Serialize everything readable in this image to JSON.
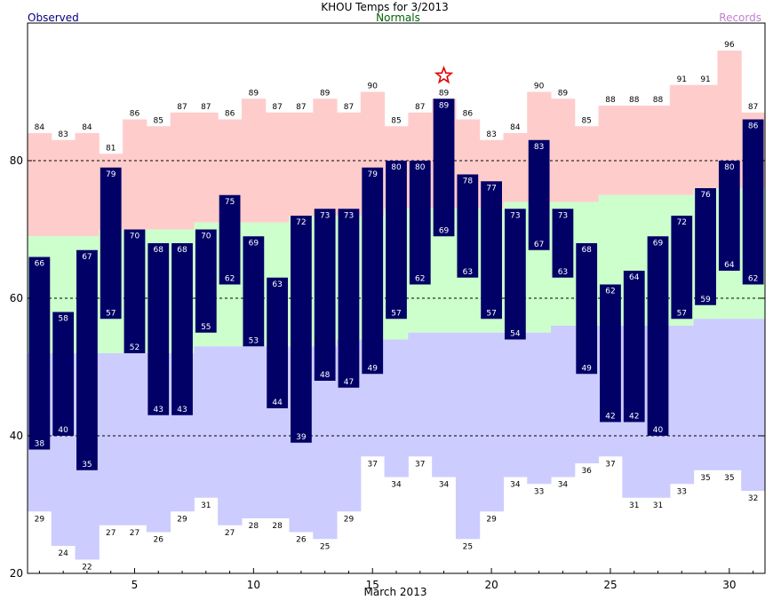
{
  "chart_data": {
    "type": "bar",
    "title": "KHOU Temps for 3/2013",
    "legend": {
      "observed": "Observed",
      "normals": "Normals",
      "records": "Records"
    },
    "xlabel": "March 2013",
    "ylabel": "",
    "xlim": [
      1,
      31
    ],
    "ylim": [
      20,
      100
    ],
    "yticks": [
      20,
      40,
      60,
      80
    ],
    "xticks": [
      5,
      10,
      15,
      20,
      25,
      30
    ],
    "grid_lines": [
      40,
      60,
      80
    ],
    "days": [
      1,
      2,
      3,
      4,
      5,
      6,
      7,
      8,
      9,
      10,
      11,
      12,
      13,
      14,
      15,
      16,
      17,
      18,
      19,
      20,
      21,
      22,
      23,
      24,
      25,
      26,
      27,
      28,
      29,
      30,
      31
    ],
    "observed_high": [
      66,
      58,
      67,
      79,
      70,
      68,
      68,
      70,
      75,
      69,
      63,
      72,
      73,
      73,
      79,
      80,
      80,
      89,
      78,
      77,
      73,
      83,
      73,
      68,
      62,
      64,
      69,
      72,
      76,
      80,
      86
    ],
    "observed_low": [
      38,
      40,
      35,
      57,
      52,
      43,
      43,
      55,
      62,
      53,
      44,
      39,
      48,
      47,
      49,
      57,
      62,
      69,
      63,
      57,
      54,
      67,
      63,
      49,
      42,
      42,
      40,
      57,
      59,
      64,
      62
    ],
    "normal_high": [
      69,
      69,
      69,
      70,
      70,
      70,
      70,
      71,
      71,
      71,
      71,
      72,
      72,
      72,
      72,
      73,
      73,
      73,
      73,
      73,
      74,
      74,
      74,
      74,
      75,
      75,
      75,
      75,
      76,
      76,
      76
    ],
    "normal_low": [
      52,
      52,
      52,
      52,
      52,
      52,
      52,
      53,
      53,
      53,
      53,
      53,
      53,
      54,
      54,
      54,
      55,
      55,
      55,
      55,
      55,
      55,
      56,
      56,
      56,
      56,
      56,
      56,
      57,
      57,
      57
    ],
    "record_high": [
      84,
      83,
      84,
      81,
      86,
      85,
      87,
      87,
      86,
      89,
      87,
      87,
      89,
      87,
      90,
      85,
      87,
      89,
      86,
      83,
      84,
      90,
      89,
      85,
      88,
      88,
      88,
      91,
      91,
      96,
      87
    ],
    "record_low": [
      29,
      24,
      22,
      27,
      27,
      26,
      29,
      31,
      27,
      28,
      28,
      26,
      25,
      29,
      37,
      34,
      37,
      34,
      25,
      29,
      34,
      33,
      34,
      36,
      37,
      31,
      31,
      33,
      35,
      35,
      32
    ],
    "record_marker_day": 18,
    "colors": {
      "observed": "#000066",
      "record_high_band": "#ffcccc",
      "normal_band": "#ccffcc",
      "record_low_band": "#ccccff",
      "grid": "#000000",
      "star": "#e00000"
    }
  }
}
